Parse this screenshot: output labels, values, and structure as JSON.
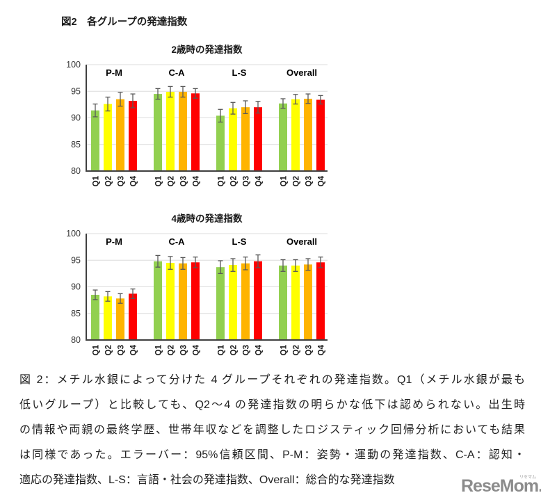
{
  "figure_title": "図2　各グループの発達指数",
  "colors": {
    "bars": [
      "#92D050",
      "#FFFF00",
      "#FFB400",
      "#FF0000"
    ],
    "error_bar": "#595959",
    "axis": "#3f3f3f",
    "gridline": "#dcdcdc",
    "logo_gray": "#8c8c8c"
  },
  "chart_data": [
    {
      "type": "bar",
      "title": "2歳時の発達指数",
      "ylim": [
        80,
        100
      ],
      "yticks": [
        80,
        85,
        90,
        95,
        100
      ],
      "grid": true,
      "legend": "none",
      "categories": [
        "Q1",
        "Q2",
        "Q3",
        "Q4"
      ],
      "error_bar_meaning": "95%信頼区間",
      "groups": [
        {
          "label": "P-M",
          "values": [
            91.4,
            92.6,
            93.5,
            93.2
          ],
          "errors": [
            1.2,
            1.3,
            1.3,
            1.3
          ]
        },
        {
          "label": "C-A",
          "values": [
            94.5,
            94.9,
            94.9,
            94.6
          ],
          "errors": [
            1.0,
            1.0,
            1.0,
            0.9
          ]
        },
        {
          "label": "L-S",
          "values": [
            90.4,
            91.8,
            92.0,
            92.0
          ],
          "errors": [
            1.2,
            1.1,
            1.2,
            1.1
          ]
        },
        {
          "label": "Overall",
          "values": [
            92.7,
            93.5,
            93.6,
            93.4
          ],
          "errors": [
            0.9,
            0.9,
            0.9,
            0.8
          ]
        }
      ]
    },
    {
      "type": "bar",
      "title": "4歳時の発達指数",
      "ylim": [
        80,
        100
      ],
      "yticks": [
        80,
        85,
        90,
        95,
        100
      ],
      "grid": true,
      "legend": "none",
      "categories": [
        "Q1",
        "Q2",
        "Q3",
        "Q4"
      ],
      "error_bar_meaning": "95%信頼区間",
      "groups": [
        {
          "label": "P-M",
          "values": [
            88.5,
            88.2,
            87.8,
            88.7
          ],
          "errors": [
            0.9,
            0.9,
            0.9,
            0.9
          ]
        },
        {
          "label": "C-A",
          "values": [
            94.8,
            94.5,
            94.4,
            94.6
          ],
          "errors": [
            1.1,
            1.2,
            1.1,
            1.0
          ]
        },
        {
          "label": "L-S",
          "values": [
            93.7,
            94.1,
            94.4,
            94.8
          ],
          "errors": [
            1.2,
            1.2,
            1.2,
            1.2
          ]
        },
        {
          "label": "Overall",
          "values": [
            94.0,
            94.0,
            94.2,
            94.6
          ],
          "errors": [
            1.1,
            1.1,
            1.1,
            1.0
          ]
        }
      ]
    }
  ],
  "caption": {
    "lines": [
      "図 2：メチル水銀によって分けた 4 グループそれぞれの発達指数。Q1（メチル水銀が最も",
      "低いグループ）と比較しても、Q2～4 の発達指数の明らかな低下は認められない。出生時",
      "の情報や両親の最終学歴、世帯年収などを調整したロジスティック回帰分析においても結果",
      "は同様であった。エラーバー：95%信頼区間、P-M：姿勢・運動の発達指数、C-A：認知・",
      "適応の発達指数、L-S：言語・社会の発達指数、Overall：総合的な発達指数"
    ]
  },
  "watermark": {
    "text": "ReseMom.",
    "ruby": "リセマム"
  }
}
